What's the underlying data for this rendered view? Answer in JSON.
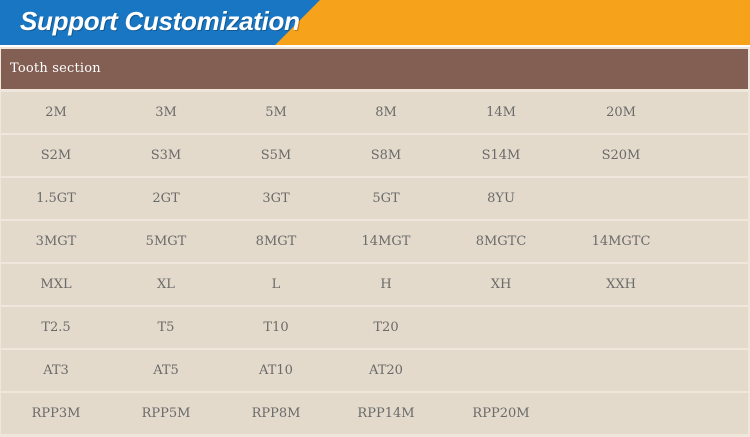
{
  "banner": {
    "title": "Support Customization"
  },
  "colors": {
    "banner_blue": "#1976c2",
    "banner_orange": "#f6a21a",
    "header_brown": "#835e52",
    "row_beige": "#e3dacb",
    "separator": "#efe7dc",
    "cell_text": "#6a6a6a"
  },
  "table": {
    "header": "Tooth section",
    "rows": [
      [
        "2M",
        "3M",
        "5M",
        "8M",
        "14M",
        "20M"
      ],
      [
        "S2M",
        "S3M",
        "S5M",
        "S8M",
        "S14M",
        "S20M"
      ],
      [
        "1.5GT",
        "2GT",
        "3GT",
        "5GT",
        "8YU",
        ""
      ],
      [
        "3MGT",
        "5MGT",
        "8MGT",
        "14MGT",
        "8MGTC",
        "14MGTC"
      ],
      [
        "MXL",
        "XL",
        "L",
        "H",
        "XH",
        "XXH"
      ],
      [
        "T2.5",
        "T5",
        "T10",
        "T20",
        "",
        ""
      ],
      [
        "AT3",
        "AT5",
        "AT10",
        "AT20",
        "",
        ""
      ],
      [
        "RPP3M",
        "RPP5M",
        "RPP8M",
        "RPP14M",
        "RPP20M",
        ""
      ]
    ]
  }
}
